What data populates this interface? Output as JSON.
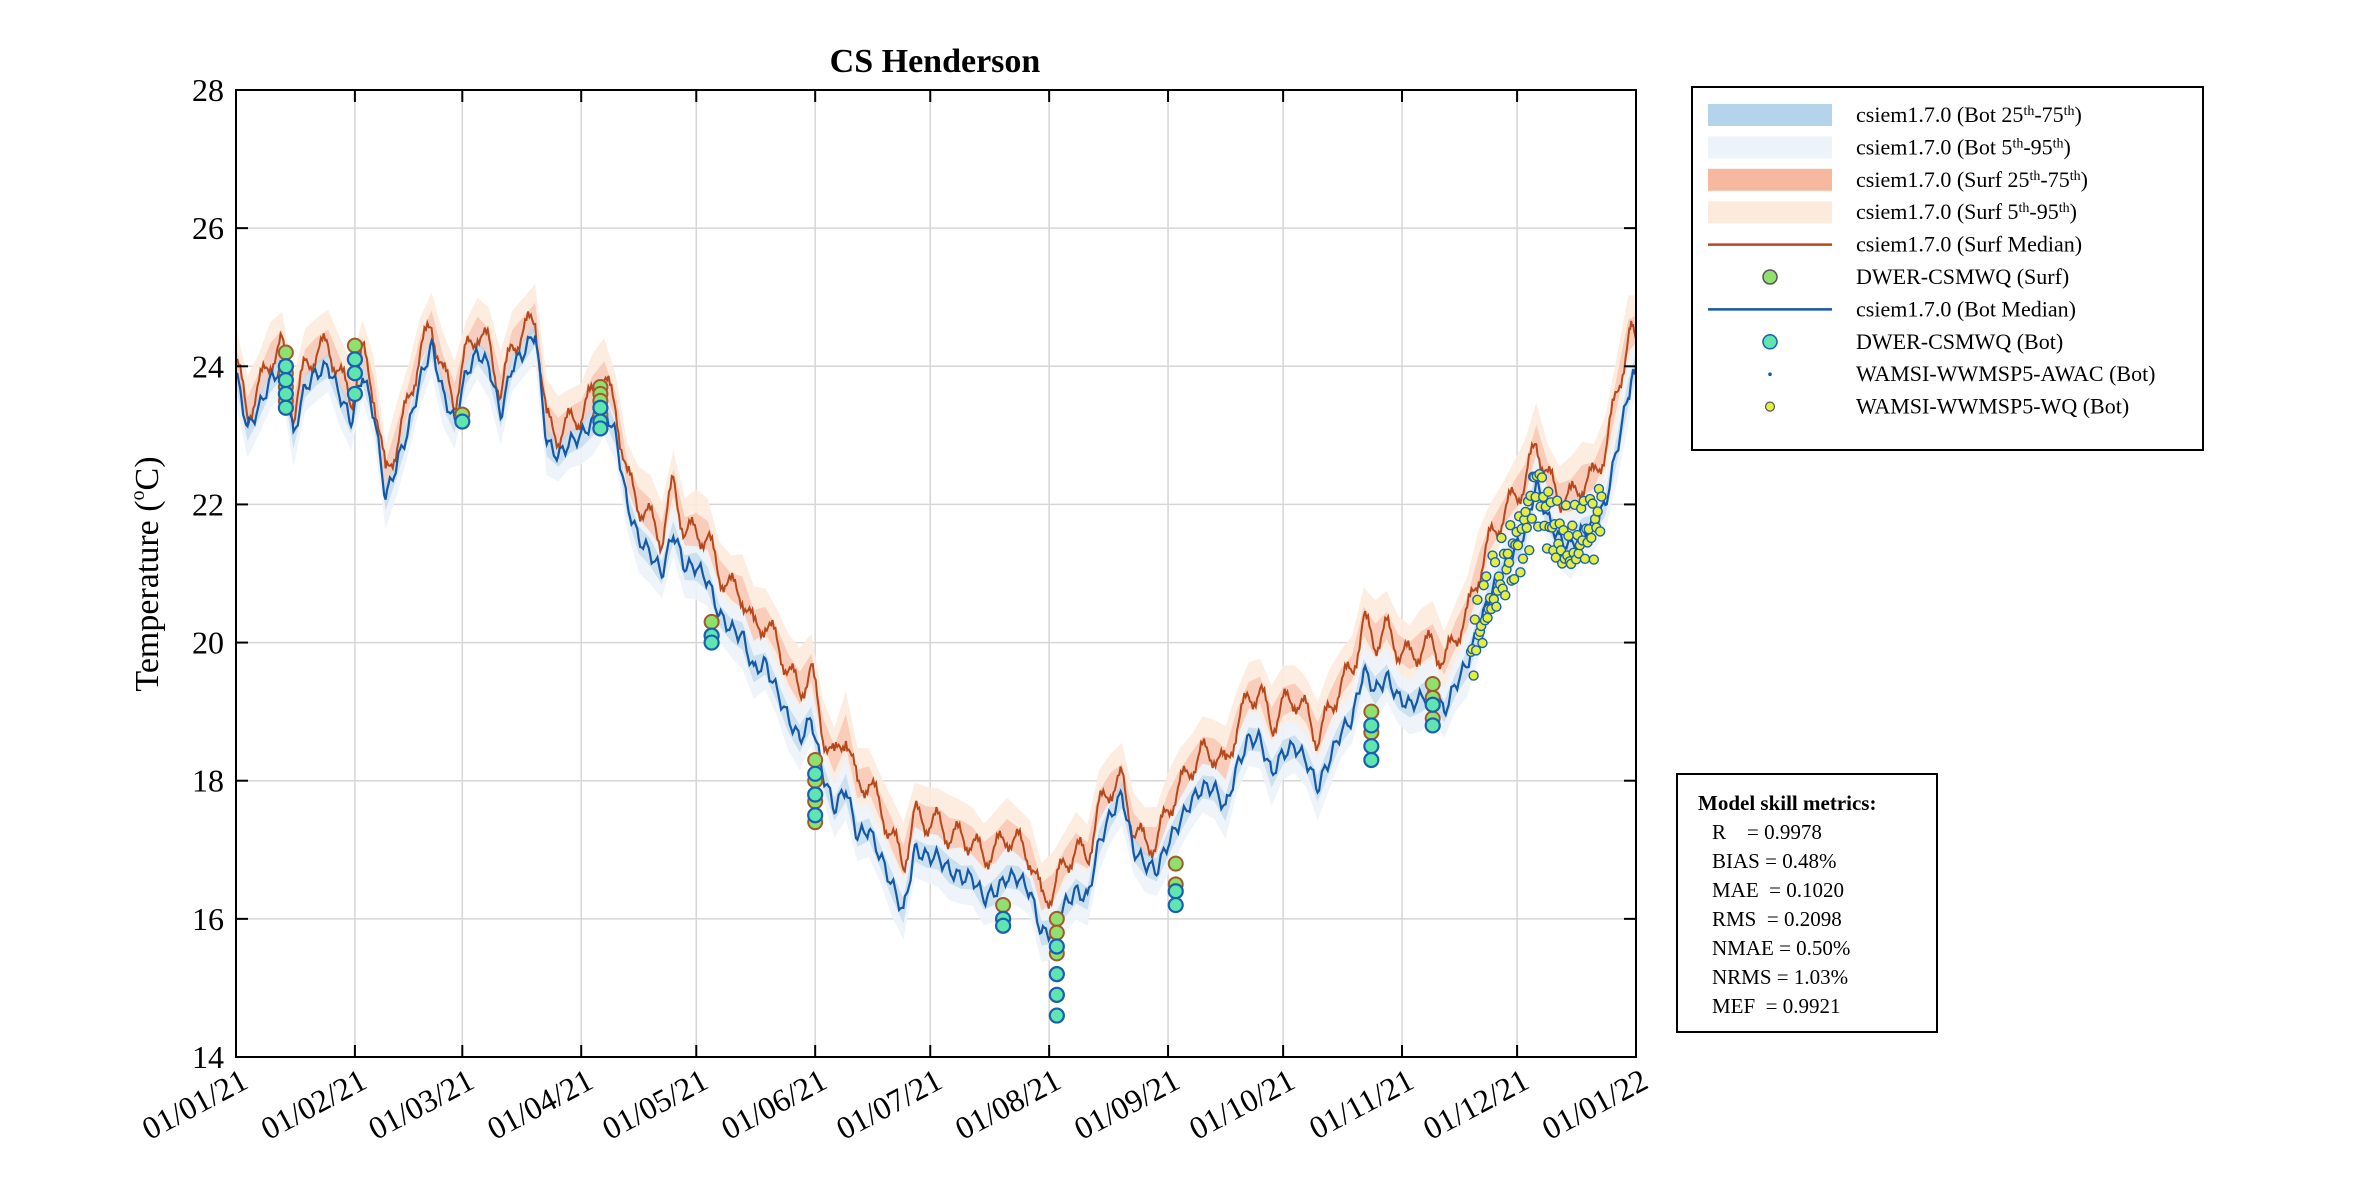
{
  "chart_data": {
    "type": "line",
    "title": "CS Henderson",
    "xlabel": "",
    "ylabel": "Temperature (°C)",
    "ylabel_parts": {
      "main": "Temperature (",
      "sup": "o",
      "unit": "C)"
    },
    "ylim": [
      14,
      28
    ],
    "yticks": [
      14,
      16,
      18,
      20,
      22,
      24,
      26,
      28
    ],
    "xticks": [
      "01/01/21",
      "01/02/21",
      "01/03/21",
      "01/04/21",
      "01/05/21",
      "01/06/21",
      "01/07/21",
      "01/08/21",
      "01/09/21",
      "01/10/21",
      "01/11/21",
      "01/12/21",
      "01/01/22"
    ],
    "xtick_days": [
      0,
      31,
      59,
      90,
      120,
      151,
      181,
      212,
      243,
      273,
      304,
      334,
      365
    ],
    "xlim_days": [
      0,
      365
    ],
    "grid": true,
    "legend_position": "outside-top-right",
    "colors": {
      "bot_iqr": "#b3d4ea",
      "bot_5_95": "#edf3fa",
      "surf_iqr": "#f7b8a0",
      "surf_5_95": "#fcebdd",
      "surf_median": "#b5491c",
      "bot_median": "#1558a6",
      "obs_surf_fill": "#90e06e",
      "obs_bot_fill": "#5ee6ae",
      "obs_bot_edge": "#1a5fb4",
      "obs_surf_edge": "#a05a2c",
      "wq_fill": "#e3ef3c"
    },
    "legend": [
      {
        "kind": "patch",
        "color": "#b3d4ea",
        "label": "csiem1.7.0 (Bot ",
        "s1": "th",
        "mid": "-75",
        "s2": "th",
        "end": ")",
        "lead": "25"
      },
      {
        "kind": "patch",
        "color": "#edf3fa",
        "label": "csiem1.7.0 (Bot ",
        "s1": "th",
        "mid": "-95",
        "s2": "th",
        "end": ")",
        "lead": "5"
      },
      {
        "kind": "patch",
        "color": "#f7b8a0",
        "label": "csiem1.7.0 (Surf ",
        "s1": "th",
        "mid": "-75",
        "s2": "th",
        "end": ")",
        "lead": "25"
      },
      {
        "kind": "patch",
        "color": "#fcebdd",
        "label": "csiem1.7.0 (Surf ",
        "s1": "th",
        "mid": "-95",
        "s2": "th",
        "end": ")",
        "lead": "5"
      },
      {
        "kind": "line",
        "color": "#b5491c",
        "label": "csiem1.7.0 (Surf Median)"
      },
      {
        "kind": "marker",
        "color": "#90e06e",
        "edge": "#555555",
        "label": "DWER-CSMWQ (Surf)"
      },
      {
        "kind": "line",
        "color": "#1558a6",
        "label": "csiem1.7.0 (Bot Median)"
      },
      {
        "kind": "marker",
        "color": "#5ee6ae",
        "edge": "#1a5fb4",
        "label": "DWER-CSMWQ (Bot)"
      },
      {
        "kind": "dot",
        "color": "#1558a6",
        "label": "WAMSI-WWMSP5-AWAC (Bot)"
      },
      {
        "kind": "small",
        "color": "#e3ef3c",
        "edge": "#555555",
        "label": "WAMSI-WWMSP5-WQ (Bot)"
      }
    ],
    "series": [
      {
        "name": "csiem1.7.0 (Bot Median)",
        "x_days": [
          0,
          3,
          6,
          9,
          12,
          15,
          18,
          21,
          24,
          27,
          30,
          33,
          36,
          39,
          42,
          45,
          48,
          51,
          54,
          57,
          60,
          63,
          66,
          69,
          72,
          75,
          78,
          81,
          84,
          87,
          90,
          93,
          96,
          99,
          102,
          105,
          108,
          111,
          114,
          117,
          120,
          123,
          126,
          129,
          132,
          135,
          138,
          141,
          144,
          147,
          150,
          153,
          156,
          159,
          162,
          165,
          168,
          171,
          174,
          177,
          180,
          183,
          186,
          189,
          192,
          195,
          198,
          201,
          204,
          207,
          210,
          213,
          216,
          219,
          222,
          225,
          228,
          231,
          234,
          237,
          240,
          243,
          246,
          249,
          252,
          255,
          258,
          261,
          264,
          267,
          270,
          273,
          276,
          279,
          282,
          285,
          288,
          291,
          294,
          297,
          300,
          303,
          306,
          309,
          312,
          315,
          318,
          321,
          324,
          327,
          330,
          333,
          336,
          339,
          342,
          345,
          348,
          351,
          354,
          357,
          360,
          363,
          365
        ],
        "values": [
          23.9,
          23.1,
          23.4,
          23.8,
          24.0,
          23.0,
          23.7,
          23.9,
          24.0,
          23.6,
          23.2,
          23.9,
          23.3,
          22.1,
          22.6,
          23.1,
          23.8,
          24.3,
          23.6,
          23.2,
          23.9,
          24.2,
          24.0,
          23.3,
          24.0,
          24.2,
          24.5,
          22.9,
          22.7,
          22.9,
          23.0,
          23.2,
          23.4,
          23.0,
          22.0,
          21.5,
          21.3,
          21.0,
          21.6,
          21.1,
          21.1,
          20.9,
          20.4,
          20.2,
          20.1,
          19.6,
          19.7,
          19.3,
          18.9,
          18.6,
          18.9,
          18.1,
          17.6,
          17.9,
          17.2,
          17.3,
          16.9,
          16.5,
          16.1,
          17.0,
          16.9,
          16.9,
          16.7,
          16.6,
          16.6,
          16.3,
          16.4,
          16.6,
          16.6,
          16.4,
          15.8,
          15.8,
          16.2,
          16.4,
          16.3,
          17.1,
          17.5,
          17.8,
          17.0,
          16.8,
          16.7,
          17.1,
          17.4,
          17.7,
          17.9,
          17.9,
          17.6,
          18.2,
          18.6,
          18.6,
          18.1,
          18.4,
          18.5,
          18.3,
          17.9,
          18.3,
          18.7,
          18.9,
          19.6,
          19.3,
          19.5,
          19.2,
          19.1,
          19.2,
          19.3,
          19.0,
          19.4,
          19.7,
          20.2,
          20.7,
          21.0,
          21.3,
          21.6,
          22.3,
          21.8,
          21.5,
          21.4,
          21.6,
          21.7,
          22.0,
          22.8,
          23.6,
          24.0
        ]
      },
      {
        "name": "csiem1.7.0 (Surf Median)",
        "x_days": [
          0,
          3,
          6,
          9,
          12,
          15,
          18,
          21,
          24,
          27,
          30,
          33,
          36,
          39,
          42,
          45,
          48,
          51,
          54,
          57,
          60,
          63,
          66,
          69,
          72,
          75,
          78,
          81,
          84,
          87,
          90,
          93,
          96,
          99,
          102,
          105,
          108,
          111,
          114,
          117,
          120,
          123,
          126,
          129,
          132,
          135,
          138,
          141,
          144,
          147,
          150,
          153,
          156,
          159,
          162,
          165,
          168,
          171,
          174,
          177,
          180,
          183,
          186,
          189,
          192,
          195,
          198,
          201,
          204,
          207,
          210,
          213,
          216,
          219,
          222,
          225,
          228,
          231,
          234,
          237,
          240,
          243,
          246,
          249,
          252,
          255,
          258,
          261,
          264,
          267,
          270,
          273,
          276,
          279,
          282,
          285,
          288,
          291,
          294,
          297,
          300,
          303,
          306,
          309,
          312,
          315,
          318,
          321,
          324,
          327,
          330,
          333,
          336,
          339,
          342,
          345,
          348,
          351,
          354,
          357,
          360,
          363,
          365
        ],
        "values": [
          24.1,
          23.3,
          23.7,
          24.1,
          24.3,
          23.3,
          24.0,
          24.2,
          24.3,
          23.9,
          23.5,
          24.2,
          23.6,
          22.4,
          22.9,
          23.5,
          24.2,
          24.6,
          23.9,
          23.5,
          24.2,
          24.5,
          24.3,
          23.6,
          24.3,
          24.5,
          24.7,
          23.2,
          23.0,
          23.2,
          23.3,
          23.6,
          23.8,
          23.4,
          22.4,
          22.0,
          21.8,
          21.5,
          22.3,
          21.6,
          21.6,
          21.5,
          21.0,
          20.8,
          20.7,
          20.2,
          20.3,
          20.0,
          19.6,
          19.3,
          19.6,
          18.7,
          18.3,
          18.7,
          17.9,
          18.0,
          17.6,
          17.2,
          16.8,
          17.5,
          17.4,
          17.4,
          17.2,
          17.2,
          17.1,
          16.9,
          17.0,
          17.2,
          17.1,
          16.9,
          16.3,
          16.4,
          16.8,
          17.0,
          16.9,
          17.6,
          17.9,
          18.0,
          17.3,
          17.1,
          17.1,
          17.6,
          17.9,
          18.2,
          18.4,
          18.4,
          18.2,
          18.8,
          19.2,
          19.3,
          18.8,
          19.1,
          19.2,
          19.0,
          18.6,
          19.0,
          19.4,
          19.6,
          20.3,
          20.0,
          20.2,
          19.9,
          19.8,
          19.9,
          20.0,
          19.7,
          20.1,
          20.4,
          21.0,
          21.5,
          21.8,
          22.1,
          22.3,
          22.9,
          22.4,
          22.1,
          22.1,
          22.3,
          22.4,
          22.8,
          23.6,
          24.4,
          24.5
        ]
      }
    ],
    "observations": {
      "dwer_surf": [
        {
          "day": 13,
          "values": [
            24.2,
            24.0,
            23.9,
            23.7,
            23.5
          ]
        },
        {
          "day": 31,
          "values": [
            24.3,
            24.1,
            23.9
          ]
        },
        {
          "day": 59,
          "values": [
            23.3
          ]
        },
        {
          "day": 95,
          "values": [
            23.7,
            23.6,
            23.5,
            23.3
          ]
        },
        {
          "day": 124,
          "values": [
            20.3,
            20.1
          ]
        },
        {
          "day": 151,
          "values": [
            18.3,
            18.0,
            17.7,
            17.4
          ]
        },
        {
          "day": 200,
          "values": [
            16.2,
            16.0
          ]
        },
        {
          "day": 214,
          "values": [
            16.0,
            15.8,
            15.5,
            15.2,
            14.9,
            14.6
          ]
        },
        {
          "day": 245,
          "values": [
            16.8,
            16.5
          ]
        },
        {
          "day": 296,
          "values": [
            19.0,
            18.7
          ]
        },
        {
          "day": 312,
          "values": [
            19.4,
            19.2,
            18.9
          ]
        }
      ],
      "dwer_bot": [
        {
          "day": 13,
          "values": [
            24.0,
            23.8,
            23.6,
            23.4
          ]
        },
        {
          "day": 31,
          "values": [
            24.1,
            23.9,
            23.6
          ]
        },
        {
          "day": 59,
          "values": [
            23.2
          ]
        },
        {
          "day": 95,
          "values": [
            23.4,
            23.2,
            23.1
          ]
        },
        {
          "day": 124,
          "values": [
            20.1,
            20.0
          ]
        },
        {
          "day": 151,
          "values": [
            18.1,
            17.8,
            17.5
          ]
        },
        {
          "day": 200,
          "values": [
            16.0,
            15.9
          ]
        },
        {
          "day": 214,
          "values": [
            15.6,
            15.2,
            14.9,
            14.6
          ]
        },
        {
          "day": 245,
          "values": [
            16.4,
            16.2
          ]
        },
        {
          "day": 296,
          "values": [
            18.8,
            18.5,
            18.3
          ]
        },
        {
          "day": 312,
          "values": [
            19.1,
            18.8
          ]
        }
      ],
      "wq_bot_range": {
        "start_day": 322,
        "end_day": 356
      }
    }
  },
  "skill_metrics": {
    "title": "Model skill metrics:",
    "rows": [
      "R    = 0.9978",
      "BIAS = 0.48%",
      "MAE  = 0.1020",
      "RMS  = 0.2098",
      "NMAE = 0.50%",
      "NRMS = 1.03%",
      "MEF  = 0.9921"
    ]
  }
}
